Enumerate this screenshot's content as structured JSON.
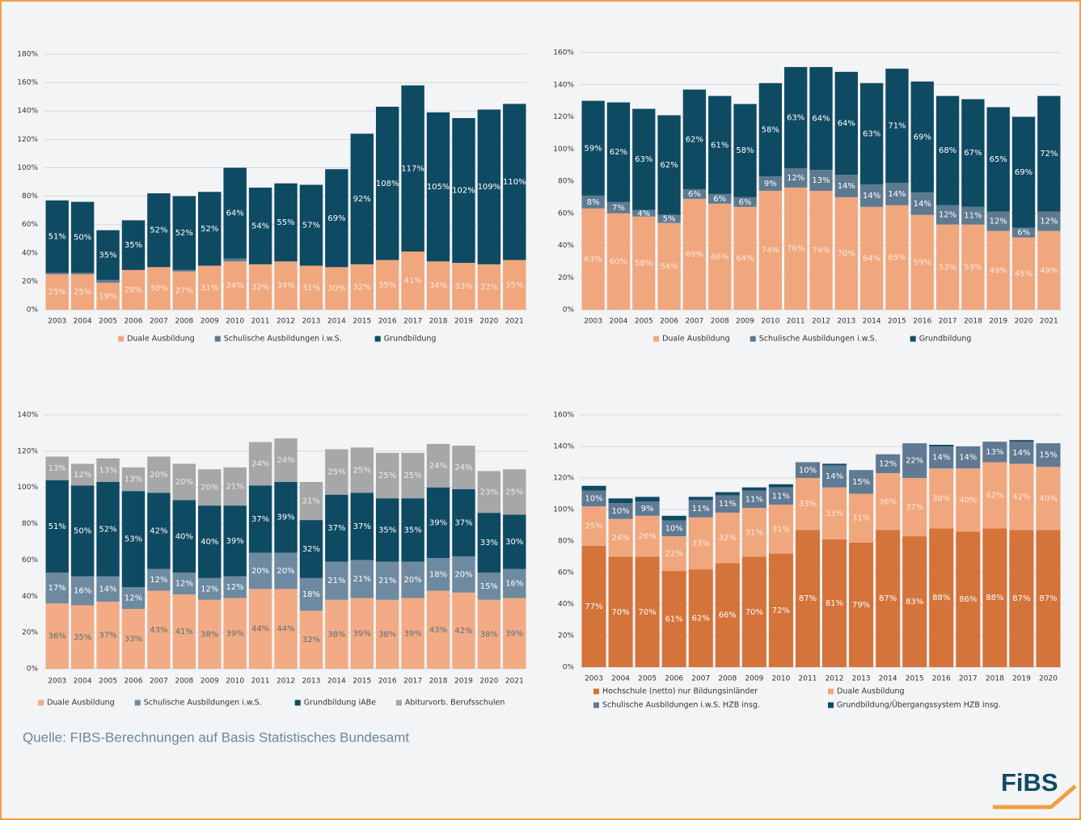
{
  "chart_data": [
    {
      "type": "bar",
      "stacked": true,
      "categories": [
        "2003",
        "2004",
        "2005",
        "2006",
        "2007",
        "2008",
        "2009",
        "2010",
        "2011",
        "2012",
        "2013",
        "2014",
        "2015",
        "2016",
        "2017",
        "2018",
        "2019",
        "2020",
        "2021"
      ],
      "ylim": [
        0,
        180
      ],
      "yticks": [
        {
          "value": 0,
          "label": "0%"
        },
        {
          "value": 20,
          "label": "20%"
        },
        {
          "value": 40,
          "label": "40%"
        },
        {
          "value": 60,
          "label": "60%"
        },
        {
          "value": 80,
          "label": "80%"
        },
        {
          "value": 100,
          "label": "100%"
        },
        {
          "value": 120,
          "label": "120%"
        },
        {
          "value": 140,
          "label": "140%"
        },
        {
          "value": 160,
          "label": "160%"
        },
        {
          "value": 180,
          "label": "180%"
        }
      ],
      "grid": true,
      "series": [
        {
          "name": "Duale Ausbildung",
          "color": "#f0a77e",
          "values": [
            25,
            25,
            19,
            28,
            30,
            27,
            31,
            34,
            32,
            34,
            31,
            30,
            32,
            35,
            41,
            34,
            33,
            32,
            35
          ],
          "value_labels": [
            "25%",
            "25%",
            "19%",
            "28%",
            "30%",
            "27%",
            "31%",
            "34%",
            "32%",
            "34%",
            "31%",
            "30%",
            "32%",
            "35%",
            "41%",
            "34%",
            "33%",
            "32%",
            "35%"
          ]
        },
        {
          "name": "Schulische Ausbildungen i.w.S.",
          "color": "#5e7a91",
          "values": [
            1,
            1,
            2,
            0,
            0,
            1,
            0,
            2,
            0,
            0,
            0,
            0,
            0,
            0,
            0,
            0,
            0,
            0,
            0
          ]
        },
        {
          "name": "Grundbildung",
          "color": "#0f4a63",
          "values": [
            51,
            50,
            35,
            35,
            52,
            52,
            52,
            64,
            54,
            55,
            57,
            69,
            92,
            108,
            117,
            105,
            102,
            109,
            110
          ],
          "value_labels": [
            "51%",
            "50%",
            "35%",
            "35%",
            "52%",
            "52%",
            "52%",
            "64%",
            "54%",
            "55%",
            "57%",
            "69%",
            "92%",
            "108%",
            "117%",
            "105%",
            "102%",
            "109%",
            "110%"
          ]
        }
      ]
    },
    {
      "type": "bar",
      "stacked": true,
      "categories": [
        "2003",
        "2004",
        "2005",
        "2006",
        "2007",
        "2008",
        "2009",
        "2010",
        "2011",
        "2012",
        "2013",
        "2014",
        "2015",
        "2016",
        "2017",
        "2018",
        "2019",
        "2020",
        "2021"
      ],
      "ylim": [
        0,
        160
      ],
      "yticks": [
        {
          "value": 0,
          "label": "0%"
        },
        {
          "value": 20,
          "label": "20%"
        },
        {
          "value": 40,
          "label": "40%"
        },
        {
          "value": 60,
          "label": "60%"
        },
        {
          "value": 80,
          "label": "80%"
        },
        {
          "value": 100,
          "label": "100%"
        },
        {
          "value": 120,
          "label": "120%"
        },
        {
          "value": 140,
          "label": "140%"
        },
        {
          "value": 160,
          "label": "160%"
        }
      ],
      "grid": true,
      "series": [
        {
          "name": "Duale Ausbildung",
          "color": "#f0a77e",
          "values": [
            63,
            60,
            58,
            54,
            69,
            66,
            64,
            74,
            76,
            74,
            70,
            64,
            65,
            59,
            53,
            53,
            49,
            45,
            49
          ],
          "value_labels": [
            "63%",
            "60%",
            "58%",
            "54%",
            "69%",
            "66%",
            "64%",
            "74%",
            "76%",
            "74%",
            "70%",
            "64%",
            "65%",
            "59%",
            "53%",
            "53%",
            "49%",
            "45%",
            "49%"
          ]
        },
        {
          "name": "Schulische Ausbildungen i.w.S.",
          "color": "#5e7a91",
          "values": [
            8,
            7,
            4,
            5,
            6,
            6,
            6,
            9,
            12,
            13,
            14,
            14,
            14,
            14,
            12,
            11,
            12,
            6,
            12
          ],
          "value_labels": [
            "8%",
            "7%",
            "4%",
            "5%",
            "6%",
            "6%",
            "6%",
            "9%",
            "12%",
            "13%",
            "14%",
            "14%",
            "14%",
            "14%",
            "12%",
            "11%",
            "12%",
            "6%",
            "12%"
          ]
        },
        {
          "name": "Grundbildung",
          "color": "#0f4a63",
          "values": [
            59,
            62,
            63,
            62,
            62,
            61,
            58,
            58,
            63,
            64,
            64,
            63,
            71,
            69,
            68,
            67,
            65,
            69,
            72
          ],
          "value_labels": [
            "59%",
            "62%",
            "63%",
            "62%",
            "62%",
            "61%",
            "58%",
            "58%",
            "63%",
            "64%",
            "64%",
            "63%",
            "71%",
            "69%",
            "68%",
            "67%",
            "65%",
            "69%",
            "72%"
          ]
        }
      ]
    },
    {
      "type": "bar",
      "stacked": true,
      "categories": [
        "2003",
        "2004",
        "2005",
        "2006",
        "2007",
        "2008",
        "2009",
        "2010",
        "2011",
        "2012",
        "2013",
        "2014",
        "2015",
        "2016",
        "2017",
        "2018",
        "2019",
        "2020",
        "2021"
      ],
      "ylim": [
        0,
        140
      ],
      "yticks": [
        {
          "value": 0,
          "label": "0%"
        },
        {
          "value": 20,
          "label": "20%"
        },
        {
          "value": 40,
          "label": "40%"
        },
        {
          "value": 60,
          "label": "60%"
        },
        {
          "value": 80,
          "label": "80%"
        },
        {
          "value": 100,
          "label": "100%"
        },
        {
          "value": 120,
          "label": "120%"
        },
        {
          "value": 140,
          "label": "140%"
        }
      ],
      "grid": true,
      "series": [
        {
          "name": "Duale Ausbildung",
          "color": "#f2ab84",
          "values": [
            36,
            35,
            37,
            33,
            43,
            41,
            38,
            39,
            44,
            44,
            32,
            38,
            39,
            38,
            39,
            43,
            42,
            38,
            39
          ],
          "value_labels": [
            "36%",
            "35%",
            "37%",
            "33%",
            "43%",
            "41%",
            "38%",
            "39%",
            "44%",
            "44%",
            "32%",
            "38%",
            "39%",
            "38%",
            "39%",
            "43%",
            "42%",
            "38%",
            "39%"
          ]
        },
        {
          "name": "Schulische Ausbildungen i.w.S.",
          "color": "#6e8aa1",
          "values": [
            17,
            16,
            14,
            12,
            12,
            12,
            12,
            12,
            20,
            20,
            18,
            21,
            21,
            21,
            20,
            18,
            20,
            15,
            16
          ],
          "value_labels": [
            "17%",
            "16%",
            "14%",
            "12%",
            "12%",
            "12%",
            "12%",
            "12%",
            "20%",
            "20%",
            "18%",
            "21%",
            "21%",
            "21%",
            "20%",
            "18%",
            "20%",
            "15%",
            "16%"
          ]
        },
        {
          "name": "Grundbildung iABe",
          "color": "#0f4a63",
          "values": [
            51,
            50,
            52,
            53,
            42,
            40,
            40,
            39,
            37,
            39,
            32,
            37,
            37,
            35,
            35,
            39,
            37,
            33,
            30
          ],
          "value_labels": [
            "51%",
            "50%",
            "52%",
            "53%",
            "42%",
            "40%",
            "40%",
            "39%",
            "37%",
            "39%",
            "32%",
            "37%",
            "37%",
            "35%",
            "35%",
            "39%",
            "37%",
            "33%",
            "30%"
          ]
        },
        {
          "name": "Abiturvorb. Berufsschulen",
          "color": "#a5a7a9",
          "values": [
            13,
            12,
            13,
            13,
            20,
            20,
            20,
            21,
            24,
            24,
            21,
            25,
            25,
            25,
            25,
            24,
            24,
            23,
            25
          ],
          "value_labels": [
            "13%",
            "12%",
            "13%",
            "13%",
            "20%",
            "20%",
            "20%",
            "21%",
            "24%",
            "24%",
            "21%",
            "25%",
            "25%",
            "25%",
            "25%",
            "24%",
            "24%",
            "23%",
            "25%"
          ]
        }
      ]
    },
    {
      "type": "bar",
      "stacked": true,
      "categories": [
        "2003",
        "2004",
        "2005",
        "2006",
        "2007",
        "2008",
        "2009",
        "2010",
        "2011",
        "2012",
        "2013",
        "2014",
        "2015",
        "2016",
        "2017",
        "2018",
        "2019",
        "2020"
      ],
      "ylim": [
        0,
        160
      ],
      "yticks": [
        {
          "value": 0,
          "label": "0%"
        },
        {
          "value": 20,
          "label": "20%"
        },
        {
          "value": 40,
          "label": "40%"
        },
        {
          "value": 60,
          "label": "60%"
        },
        {
          "value": 80,
          "label": "80%"
        },
        {
          "value": 100,
          "label": "100%"
        },
        {
          "value": 120,
          "label": "120%"
        },
        {
          "value": 140,
          "label": "140%"
        },
        {
          "value": 160,
          "label": "160%"
        }
      ],
      "grid": true,
      "series": [
        {
          "name": "Hochschule (netto) nur Bildungsinländer",
          "color": "#d4733a",
          "values": [
            77,
            70,
            70,
            61,
            62,
            66,
            70,
            72,
            87,
            81,
            79,
            87,
            83,
            88,
            86,
            88,
            87,
            87
          ],
          "value_labels": [
            "77%",
            "70%",
            "70%",
            "61%",
            "62%",
            "66%",
            "70%",
            "72%",
            "87%",
            "81%",
            "79%",
            "87%",
            "83%",
            "88%",
            "86%",
            "88%",
            "87%",
            "87%"
          ]
        },
        {
          "name": "Duale Ausbildung",
          "color": "#f0a77e",
          "values": [
            25,
            24,
            26,
            22,
            33,
            32,
            31,
            31,
            33,
            33,
            31,
            36,
            37,
            38,
            40,
            42,
            42,
            40
          ],
          "value_labels": [
            "25%",
            "24%",
            "26%",
            "22%",
            "33%",
            "32%",
            "31%",
            "31%",
            "33%",
            "33%",
            "31%",
            "36%",
            "37%",
            "38%",
            "40%",
            "42%",
            "42%",
            "40%"
          ]
        },
        {
          "name": "Schulische Ausbildungen i.w.S. HZB insg.",
          "color": "#5f7a92",
          "values": [
            10,
            10,
            9,
            10,
            11,
            11,
            11,
            11,
            10,
            14,
            15,
            12,
            22,
            14,
            14,
            13,
            14,
            15
          ],
          "value_labels": [
            "10%",
            "10%",
            "9%",
            "10%",
            "11%",
            "11%",
            "11%",
            "11%",
            "10%",
            "14%",
            "15%",
            "12%",
            "22%",
            "14%",
            "14%",
            "13%",
            "14%",
            "15%"
          ]
        },
        {
          "name": "Grundbildung/Übergangssystem HZB insg.",
          "color": "#0f4a63",
          "values": [
            3,
            3,
            3,
            3,
            2,
            2,
            2,
            2,
            0,
            1,
            0,
            0,
            0,
            1,
            0,
            0,
            1,
            0
          ]
        }
      ]
    }
  ],
  "source": "Quelle: FIBS-Berechnungen auf Basis Statistisches Bundesamt",
  "logo": "FiBS"
}
